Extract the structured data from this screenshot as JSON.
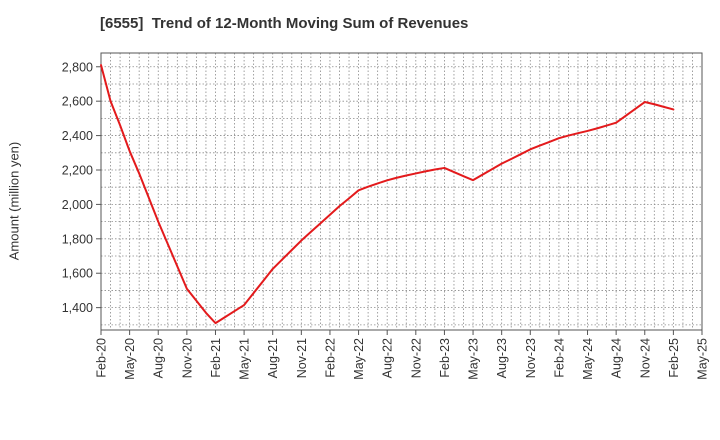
{
  "chart_data": {
    "type": "line",
    "title": "[6555]  Trend of 12-Month Moving Sum of Revenues",
    "xlabel": "",
    "ylabel": "Amount (million yen)",
    "ylim": [
      1270,
      2880
    ],
    "yticks": [
      1400,
      1600,
      1800,
      2000,
      2200,
      2400,
      2600,
      2800
    ],
    "ytick_labels": [
      "1,400",
      "1,600",
      "1,800",
      "2,000",
      "2,200",
      "2,400",
      "2,600",
      "2,800"
    ],
    "xtick_labels": [
      "Feb-20",
      "May-20",
      "Aug-20",
      "Nov-20",
      "Feb-21",
      "May-21",
      "Aug-21",
      "Nov-21",
      "Feb-22",
      "May-22",
      "Aug-22",
      "Nov-22",
      "Feb-23",
      "May-23",
      "Aug-23",
      "Nov-23",
      "Feb-24",
      "May-24",
      "Aug-24",
      "Nov-24",
      "Feb-25",
      "May-25"
    ],
    "grid": true,
    "line_color": "#e31a1c",
    "series": [
      {
        "x": [
          "Feb-20",
          "Mar-20",
          "Apr-20",
          "May-20",
          "Jun-20",
          "Jul-20",
          "Aug-20",
          "Sep-20",
          "Oct-20",
          "Nov-20",
          "Dec-20",
          "Jan-21",
          "Feb-21",
          "Mar-21",
          "Apr-21",
          "May-21",
          "Jun-21",
          "Jul-21",
          "Aug-21",
          "Sep-21",
          "Oct-21",
          "Nov-21",
          "Dec-21",
          "Jan-22",
          "Feb-22",
          "Mar-22",
          "Apr-22",
          "May-22",
          "Jun-22",
          "Jul-22",
          "Aug-22",
          "Sep-22",
          "Oct-22",
          "Nov-22",
          "Dec-22",
          "Jan-23",
          "Feb-23",
          "Mar-23",
          "Apr-23",
          "May-23",
          "Jun-23",
          "Jul-23",
          "Aug-23",
          "Sep-23",
          "Oct-23",
          "Nov-23",
          "Dec-23",
          "Jan-24",
          "Feb-24",
          "Mar-24",
          "Apr-24",
          "May-24",
          "Jun-24",
          "Jul-24",
          "Aug-24",
          "Sep-24",
          "Oct-24",
          "Nov-24",
          "Dec-24",
          "Jan-25",
          "Feb-25"
        ],
        "values": [
          2810,
          2600,
          2460,
          2310,
          2180,
          2040,
          1900,
          1770,
          1640,
          1510,
          1440,
          1370,
          1310,
          1345,
          1380,
          1415,
          1485,
          1555,
          1625,
          1680,
          1735,
          1790,
          1840,
          1890,
          1940,
          1990,
          2035,
          2082,
          2103,
          2122,
          2140,
          2155,
          2168,
          2180,
          2192,
          2203,
          2212,
          2188,
          2164,
          2141,
          2173,
          2205,
          2237,
          2264,
          2292,
          2320,
          2342,
          2363,
          2385,
          2400,
          2414,
          2427,
          2442,
          2458,
          2475,
          2515,
          2555,
          2595,
          2582,
          2567,
          2552
        ]
      }
    ]
  }
}
